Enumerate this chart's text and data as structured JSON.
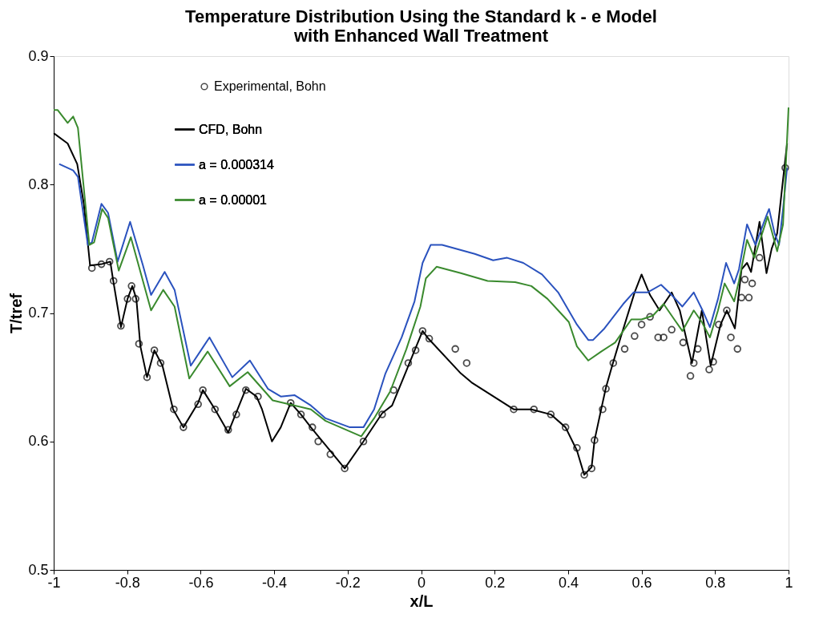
{
  "chart_data": {
    "type": "line",
    "title": "Temperature Distribution Using the Standard k - e Model\nwith Enhanced Wall Treatment",
    "xlabel": "x/L",
    "ylabel": "T/tref",
    "xlim": [
      -1,
      1
    ],
    "xticks": [
      -1,
      -0.8,
      -0.6,
      -0.4,
      -0.2,
      0,
      0.2,
      0.4,
      0.6,
      0.8,
      1
    ],
    "ylim": [
      0.5,
      0.9
    ],
    "yticks": [
      0.5,
      0.6,
      0.7,
      0.8,
      0.9
    ],
    "grid": false,
    "legend": "top left",
    "series": [
      {
        "name": "Experimental, Bohn",
        "type": "scatter",
        "marker": "circle",
        "color": "#000000",
        "x": [
          -0.896,
          -0.87,
          -0.848,
          -0.837,
          -0.817,
          -0.799,
          -0.788,
          -0.777,
          -0.768,
          -0.746,
          -0.726,
          -0.709,
          -0.673,
          -0.647,
          -0.607,
          -0.594,
          -0.561,
          -0.525,
          -0.503,
          -0.477,
          -0.444,
          -0.355,
          -0.327,
          -0.296,
          -0.28,
          -0.247,
          -0.208,
          -0.157,
          -0.106,
          -0.075,
          -0.035,
          -0.015,
          0.004,
          0.022,
          0.093,
          0.124,
          0.252,
          0.307,
          0.353,
          0.393,
          0.424,
          0.444,
          0.464,
          0.472,
          0.494,
          0.503,
          0.523,
          0.554,
          0.581,
          0.6,
          0.623,
          0.645,
          0.66,
          0.682,
          0.713,
          0.733,
          0.742,
          0.753,
          0.784,
          0.795,
          0.81,
          0.832,
          0.843,
          0.861,
          0.872,
          0.881,
          0.892,
          0.901,
          0.921,
          0.991
        ],
        "values": [
          0.735,
          0.738,
          0.74,
          0.725,
          0.69,
          0.711,
          0.721,
          0.711,
          0.676,
          0.65,
          0.671,
          0.661,
          0.625,
          0.611,
          0.629,
          0.64,
          0.625,
          0.609,
          0.621,
          0.64,
          0.635,
          0.63,
          0.621,
          0.611,
          0.6,
          0.59,
          0.579,
          0.6,
          0.621,
          0.64,
          0.661,
          0.671,
          0.686,
          0.68,
          0.672,
          0.661,
          0.625,
          0.625,
          0.621,
          0.611,
          0.595,
          0.574,
          0.579,
          0.601,
          0.625,
          0.641,
          0.661,
          0.672,
          0.682,
          0.691,
          0.697,
          0.681,
          0.681,
          0.687,
          0.677,
          0.651,
          0.661,
          0.672,
          0.656,
          0.662,
          0.691,
          0.702,
          0.681,
          0.672,
          0.712,
          0.726,
          0.712,
          0.723,
          0.743,
          0.813
        ]
      },
      {
        "name": "CFD, Bohn",
        "color": "#000000",
        "x": [
          -1,
          -0.962,
          -0.936,
          -0.918,
          -0.901,
          -0.87,
          -0.846,
          -0.839,
          -0.817,
          -0.799,
          -0.786,
          -0.775,
          -0.764,
          -0.746,
          -0.726,
          -0.704,
          -0.675,
          -0.647,
          -0.607,
          -0.594,
          -0.561,
          -0.525,
          -0.477,
          -0.448,
          -0.433,
          -0.406,
          -0.382,
          -0.355,
          -0.327,
          -0.3,
          -0.208,
          -0.157,
          -0.106,
          -0.079,
          0.004,
          0.02,
          0.108,
          0.137,
          0.252,
          0.3,
          0.353,
          0.393,
          0.424,
          0.444,
          0.464,
          0.472,
          0.49,
          0.503,
          0.521,
          0.543,
          0.581,
          0.6,
          0.623,
          0.649,
          0.682,
          0.704,
          0.737,
          0.764,
          0.788,
          0.815,
          0.832,
          0.854,
          0.872,
          0.887,
          0.898,
          0.921,
          0.94,
          0.954,
          0.969,
          0.985,
          0.996
        ],
        "values": [
          0.84,
          0.832,
          0.816,
          0.785,
          0.737,
          0.738,
          0.74,
          0.727,
          0.689,
          0.711,
          0.721,
          0.711,
          0.674,
          0.65,
          0.671,
          0.659,
          0.625,
          0.611,
          0.63,
          0.64,
          0.625,
          0.607,
          0.641,
          0.635,
          0.625,
          0.6,
          0.611,
          0.63,
          0.621,
          0.611,
          0.579,
          0.6,
          0.622,
          0.628,
          0.686,
          0.68,
          0.653,
          0.646,
          0.625,
          0.625,
          0.621,
          0.611,
          0.593,
          0.574,
          0.58,
          0.601,
          0.625,
          0.642,
          0.66,
          0.681,
          0.716,
          0.73,
          0.714,
          0.702,
          0.716,
          0.702,
          0.661,
          0.702,
          0.659,
          0.691,
          0.702,
          0.688,
          0.734,
          0.739,
          0.732,
          0.771,
          0.731,
          0.75,
          0.762,
          0.804,
          0.832
        ]
      },
      {
        "name": "a = 0.000314",
        "color": "#2a52be",
        "x": [
          -0.985,
          -0.947,
          -0.934,
          -0.907,
          -0.896,
          -0.87,
          -0.852,
          -0.826,
          -0.792,
          -0.757,
          -0.735,
          -0.698,
          -0.671,
          -0.627,
          -0.576,
          -0.514,
          -0.466,
          -0.417,
          -0.382,
          -0.344,
          -0.3,
          -0.26,
          -0.194,
          -0.157,
          -0.128,
          -0.097,
          -0.053,
          -0.018,
          0.004,
          0.026,
          0.057,
          0.146,
          0.196,
          0.234,
          0.278,
          0.329,
          0.373,
          0.424,
          0.455,
          0.468,
          0.499,
          0.55,
          0.578,
          0.616,
          0.653,
          0.682,
          0.711,
          0.742,
          0.766,
          0.786,
          0.808,
          0.83,
          0.852,
          0.865,
          0.887,
          0.91,
          0.94,
          0.947,
          0.962,
          0.974,
          0.985,
          0.996
        ],
        "values": [
          0.816,
          0.811,
          0.806,
          0.753,
          0.755,
          0.785,
          0.778,
          0.74,
          0.771,
          0.737,
          0.714,
          0.732,
          0.718,
          0.659,
          0.681,
          0.65,
          0.663,
          0.641,
          0.635,
          0.636,
          0.628,
          0.618,
          0.611,
          0.611,
          0.625,
          0.653,
          0.681,
          0.709,
          0.739,
          0.753,
          0.753,
          0.746,
          0.741,
          0.743,
          0.739,
          0.73,
          0.716,
          0.691,
          0.679,
          0.679,
          0.688,
          0.707,
          0.716,
          0.716,
          0.722,
          0.714,
          0.705,
          0.716,
          0.702,
          0.689,
          0.711,
          0.739,
          0.723,
          0.734,
          0.769,
          0.753,
          0.776,
          0.781,
          0.762,
          0.753,
          0.781,
          0.813
        ]
      },
      {
        "name": "a = 0.00001",
        "color": "#3a8a2e",
        "x": [
          -1,
          -0.989,
          -0.962,
          -0.947,
          -0.934,
          -0.903,
          -0.89,
          -0.868,
          -0.852,
          -0.823,
          -0.79,
          -0.735,
          -0.702,
          -0.671,
          -0.631,
          -0.581,
          -0.521,
          -0.472,
          -0.404,
          -0.3,
          -0.26,
          -0.163,
          -0.128,
          -0.084,
          -0.04,
          -0.002,
          0.013,
          0.042,
          0.108,
          0.181,
          0.256,
          0.3,
          0.344,
          0.373,
          0.402,
          0.424,
          0.455,
          0.49,
          0.528,
          0.572,
          0.6,
          0.631,
          0.66,
          0.689,
          0.711,
          0.742,
          0.764,
          0.786,
          0.808,
          0.826,
          0.852,
          0.865,
          0.887,
          0.907,
          0.943,
          0.954,
          0.969,
          0.985,
          1
        ],
        "values": [
          0.858,
          0.858,
          0.848,
          0.853,
          0.844,
          0.753,
          0.755,
          0.781,
          0.774,
          0.733,
          0.759,
          0.702,
          0.718,
          0.705,
          0.649,
          0.67,
          0.643,
          0.654,
          0.632,
          0.625,
          0.616,
          0.604,
          0.618,
          0.639,
          0.672,
          0.705,
          0.727,
          0.736,
          0.731,
          0.725,
          0.724,
          0.721,
          0.711,
          0.702,
          0.693,
          0.674,
          0.663,
          0.67,
          0.677,
          0.695,
          0.695,
          0.698,
          0.707,
          0.695,
          0.686,
          0.702,
          0.693,
          0.681,
          0.702,
          0.723,
          0.709,
          0.725,
          0.757,
          0.743,
          0.775,
          0.764,
          0.748,
          0.769,
          0.86
        ]
      }
    ]
  }
}
